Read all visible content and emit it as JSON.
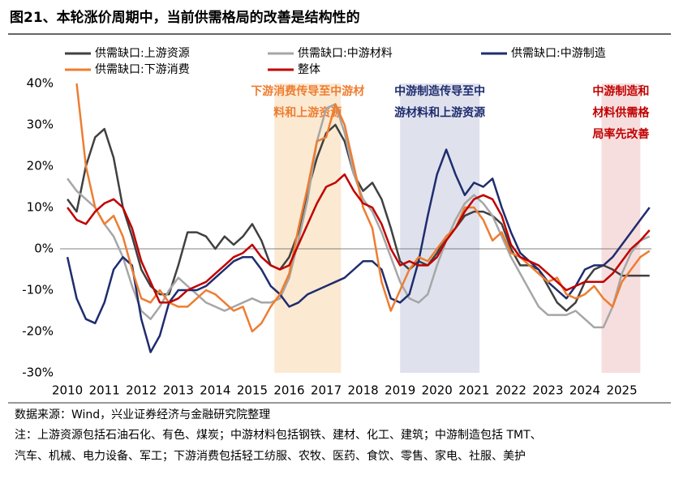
{
  "chart_data": {
    "type": "line",
    "title": "图21、本轮涨价周期中，当前供需格局的改善是结构性的",
    "x": [
      2010,
      2010.25,
      2010.5,
      2010.75,
      2011,
      2011.25,
      2011.5,
      2011.75,
      2012,
      2012.25,
      2012.5,
      2012.75,
      2013,
      2013.25,
      2013.5,
      2013.75,
      2014,
      2014.25,
      2014.5,
      2014.75,
      2015,
      2015.25,
      2015.5,
      2015.75,
      2016,
      2016.25,
      2016.5,
      2016.75,
      2017,
      2017.25,
      2017.5,
      2017.75,
      2018,
      2018.25,
      2018.5,
      2018.75,
      2019,
      2019.25,
      2019.5,
      2019.75,
      2020,
      2020.25,
      2020.5,
      2020.75,
      2021,
      2021.25,
      2021.5,
      2021.75,
      2022,
      2022.25,
      2022.5,
      2022.75,
      2023,
      2023.25,
      2023.5,
      2023.75,
      2024,
      2024.25,
      2024.5,
      2024.75,
      2025,
      2025.25,
      2025.5,
      2025.75
    ],
    "xlim": [
      2009.8,
      2025.8
    ],
    "xticks": [
      2010,
      2011,
      2012,
      2013,
      2014,
      2015,
      2016,
      2017,
      2018,
      2019,
      2020,
      2021,
      2022,
      2023,
      2024,
      2025
    ],
    "ylim": [
      -30,
      40
    ],
    "yticks": [
      {
        "value": -30,
        "label": "-30%"
      },
      {
        "value": -20,
        "label": "-20%"
      },
      {
        "value": -10,
        "label": "-10%"
      },
      {
        "value": 0,
        "label": "0%"
      },
      {
        "value": 10,
        "label": "10%"
      },
      {
        "value": 20,
        "label": "20%"
      },
      {
        "value": 30,
        "label": "30%"
      },
      {
        "value": 40,
        "label": "40%"
      }
    ],
    "series": [
      {
        "name": "供需缺口:上游资源",
        "color": "#404040",
        "values": [
          12,
          9,
          20,
          27,
          29,
          22,
          10,
          3,
          -5,
          -9,
          -11,
          -11,
          -4,
          4,
          4,
          3,
          0,
          3,
          1,
          3,
          6,
          2,
          -4,
          -5,
          -2,
          4,
          14,
          22,
          28,
          30,
          26,
          18,
          14,
          16,
          12,
          5,
          -3,
          -5,
          -3,
          -4,
          -1,
          3,
          5,
          8,
          9,
          9,
          8,
          6,
          0,
          -4,
          -4,
          -5,
          -9,
          -13,
          -15,
          -13,
          -8,
          -5,
          -4,
          -5,
          -6.5,
          -6.5,
          -6.5,
          -6.5
        ]
      },
      {
        "name": "供需缺口:中游材料",
        "color": "#a6a6a6",
        "values": [
          17,
          14,
          12,
          10,
          6,
          3,
          -2,
          -9,
          -15,
          -17,
          -14,
          -10,
          -7,
          -9,
          -11,
          -13,
          -14,
          -15,
          -14,
          -13,
          -12,
          -13,
          -13,
          -12,
          -7,
          2,
          12,
          26,
          34,
          35,
          28,
          18,
          12,
          9,
          4,
          -2,
          -8,
          -12,
          -13,
          -11,
          -4,
          2,
          7,
          11,
          13,
          11,
          8,
          3,
          -2,
          -6,
          -10,
          -14,
          -16,
          -16,
          -16,
          -15,
          -17,
          -19,
          -19,
          -14,
          -6,
          -1,
          2,
          3
        ]
      },
      {
        "name": "供需缺口:中游制造",
        "color": "#1f2d6e",
        "values": [
          -2,
          -12,
          -17,
          -18,
          -13,
          -5,
          -2,
          -4,
          -17,
          -25,
          -21,
          -13,
          -10,
          -10,
          -10,
          -9,
          -7,
          -5,
          -3,
          -2,
          -2,
          -5,
          -9,
          -11,
          -14,
          -13,
          -11,
          -10,
          -9,
          -8,
          -7,
          -5,
          -3,
          -3,
          -5,
          -12,
          -13,
          -11,
          -3,
          8,
          18,
          24,
          18,
          13,
          16,
          15,
          17,
          10,
          4,
          -1,
          -3,
          -5,
          -8,
          -10,
          -12,
          -9,
          -5,
          -4,
          -4,
          -2,
          1,
          4,
          7,
          10
        ]
      },
      {
        "name": "供需缺口:下游消费",
        "color": "#ed7d31",
        "values": [
          null,
          40,
          20,
          10,
          6,
          8,
          3,
          -5,
          -12,
          -13,
          -10,
          -13,
          -14,
          -14,
          -12,
          -10,
          -11,
          -13,
          -15,
          -14,
          -20,
          -18,
          -14,
          -11,
          -6,
          5,
          15,
          26,
          27,
          35,
          30,
          20,
          10,
          5,
          -8,
          -15,
          -10,
          -5,
          -2,
          -3,
          0,
          3,
          5,
          10,
          10,
          7,
          2,
          4,
          -1,
          -2,
          -4,
          -6,
          -8,
          -7,
          -11,
          -12,
          -11,
          -9,
          -12,
          -14,
          -8,
          -5,
          -2,
          -0.5
        ]
      },
      {
        "name": "整体",
        "color": "#c00000",
        "values": [
          10,
          7,
          6,
          9,
          11,
          12,
          10,
          5,
          -3,
          -8,
          -13,
          -13,
          -12,
          -10,
          -9,
          -8,
          -6,
          -4,
          -2,
          -1,
          1,
          -2,
          -4,
          -5,
          -4,
          1,
          6,
          11,
          15,
          16,
          18,
          14,
          11,
          10,
          6,
          0,
          -4,
          -3,
          -4,
          -4,
          -2,
          2,
          5,
          9,
          12,
          13,
          12,
          8,
          1,
          -2,
          -3,
          -4,
          -6,
          -8,
          -10,
          -9,
          -8,
          -8,
          -8,
          -6,
          -3,
          0,
          2,
          4.5
        ]
      }
    ],
    "highlights": [
      {
        "start": 2015.6,
        "end": 2017.4,
        "color": "#fce9d2",
        "text_color": "#ed7d31",
        "label": [
          "下游消费传导至中游材",
          "料和上游资源"
        ]
      },
      {
        "start": 2019.0,
        "end": 2021.15,
        "color": "#dfe2ed",
        "text_color": "#1f2d6e",
        "label": [
          "中游制造传导至中",
          "游材料和上游资源"
        ]
      },
      {
        "start": 2024.45,
        "end": 2025.5,
        "color": "#f7dede",
        "text_color": "#c00000",
        "label": [
          "中游制造和",
          "材料供需格",
          "局率先改善"
        ]
      }
    ],
    "source": "数据来源：Wind，兴业证券经济与金融研究院整理",
    "note": [
      "注：上游资源包括石油石化、有色、煤炭；中游材料包括钢铁、建材、化工、建筑；中游制造包括 TMT、",
      "汽车、机械、电力设备、军工；下游消费包括轻工纺服、农牧、医药、食饮、零售、家电、社服、美护"
    ]
  }
}
